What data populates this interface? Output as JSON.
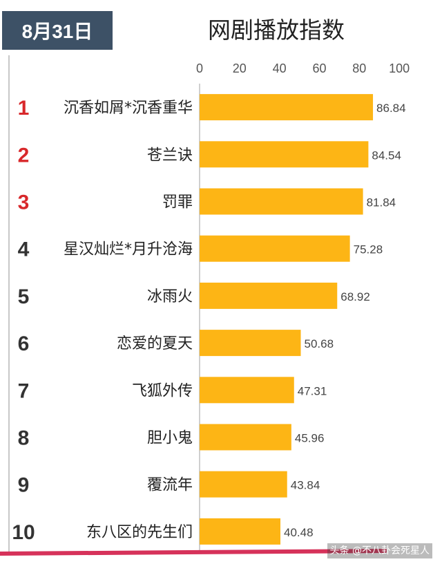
{
  "date_badge": "8月31日",
  "watermark": "头条 @不八卦会死星人",
  "colors": {
    "bar": "#FDB515",
    "badge_bg": "#3D5166",
    "top_rank": "#D8282B",
    "rank": "#333333",
    "bottom_bar": "#D6325A"
  },
  "chart_data": {
    "type": "bar",
    "orientation": "horizontal",
    "title": "网剧播放指数",
    "xlim": [
      0,
      100
    ],
    "xticks": [
      0,
      20,
      40,
      60,
      80,
      100
    ],
    "grid": false,
    "ranks": [
      "1",
      "2",
      "3",
      "4",
      "5",
      "6",
      "7",
      "8",
      "9",
      "10"
    ],
    "categories": [
      "沉香如屑*沉香重华",
      "苍兰诀",
      "罚罪",
      "星汉灿烂*月升沧海",
      "冰雨火",
      "恋爱的夏天",
      "飞狐外传",
      "胆小鬼",
      "覆流年",
      "东八区的先生们"
    ],
    "values": [
      86.84,
      84.54,
      81.84,
      75.28,
      68.92,
      50.68,
      47.31,
      45.96,
      43.84,
      40.48
    ],
    "value_labels": [
      "86.84",
      "84.54",
      "81.84",
      "75.28",
      "68.92",
      "50.68",
      "47.31",
      "45.96",
      "43.84",
      "40.48"
    ]
  }
}
